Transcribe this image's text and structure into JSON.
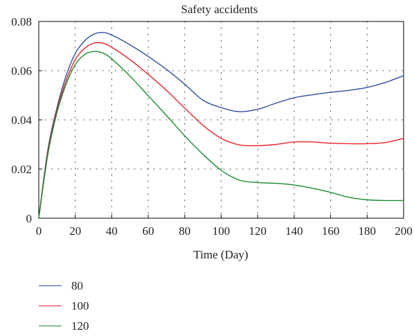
{
  "chart_data": {
    "type": "line",
    "title": "Safety accidents",
    "xlabel": "Time (Day)",
    "ylabel": "",
    "xlim": [
      0,
      200
    ],
    "ylim": [
      0,
      0.08
    ],
    "x_ticks": [
      0,
      20,
      40,
      60,
      80,
      100,
      120,
      140,
      160,
      180,
      200
    ],
    "y_ticks": [
      0,
      0.02,
      0.04,
      0.06,
      0.08
    ],
    "y_tick_labels": [
      "0",
      "0.02",
      "0.04",
      "0.06",
      "0.08"
    ],
    "grid": true,
    "legend_position": "bottom-left",
    "series": [
      {
        "name": "80",
        "color": "#2e4f9e",
        "x": [
          0,
          5,
          10,
          15,
          20,
          25,
          30,
          35,
          40,
          50,
          60,
          70,
          80,
          90,
          100,
          110,
          120,
          130,
          140,
          150,
          160,
          170,
          180,
          190,
          200
        ],
        "y": [
          0,
          0.028,
          0.045,
          0.058,
          0.067,
          0.072,
          0.0748,
          0.0755,
          0.0745,
          0.0705,
          0.0658,
          0.0605,
          0.0545,
          0.048,
          0.045,
          0.0433,
          0.0443,
          0.0468,
          0.049,
          0.0502,
          0.0512,
          0.052,
          0.0532,
          0.0552,
          0.058
        ]
      },
      {
        "name": "100",
        "color": "#e8232a",
        "x": [
          0,
          5,
          10,
          15,
          20,
          25,
          30,
          35,
          40,
          50,
          60,
          70,
          80,
          90,
          100,
          110,
          120,
          130,
          140,
          150,
          160,
          170,
          180,
          190,
          200
        ],
        "y": [
          0,
          0.027,
          0.044,
          0.056,
          0.0645,
          0.069,
          0.0712,
          0.0712,
          0.0695,
          0.0645,
          0.0585,
          0.052,
          0.0448,
          0.0378,
          0.0325,
          0.0298,
          0.0295,
          0.03,
          0.031,
          0.031,
          0.0305,
          0.0303,
          0.0303,
          0.0308,
          0.0325
        ]
      },
      {
        "name": "120",
        "color": "#1a8a2e",
        "x": [
          0,
          5,
          10,
          15,
          20,
          25,
          30,
          35,
          40,
          50,
          60,
          70,
          80,
          90,
          100,
          110,
          120,
          130,
          140,
          150,
          160,
          170,
          180,
          190,
          200
        ],
        "y": [
          0,
          0.026,
          0.043,
          0.0545,
          0.0625,
          0.0665,
          0.0678,
          0.0672,
          0.0648,
          0.0578,
          0.0498,
          0.0418,
          0.0335,
          0.026,
          0.0195,
          0.0155,
          0.0145,
          0.0142,
          0.0135,
          0.0122,
          0.0105,
          0.0085,
          0.0075,
          0.0072,
          0.0072
        ]
      }
    ]
  }
}
